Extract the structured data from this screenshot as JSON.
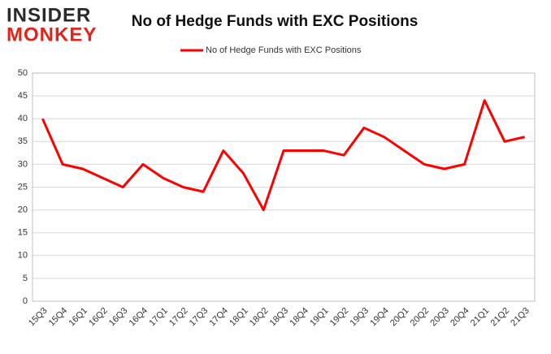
{
  "logo": {
    "line1": "INSIDER",
    "line2": "MONKEY"
  },
  "chart_data": {
    "type": "line",
    "title": "No of Hedge Funds with EXC Positions",
    "categories": [
      "15Q3",
      "15Q4",
      "16Q1",
      "16Q2",
      "16Q3",
      "16Q4",
      "17Q1",
      "17Q2",
      "17Q3",
      "17Q4",
      "18Q1",
      "18Q2",
      "18Q3",
      "18Q4",
      "19Q1",
      "19Q2",
      "19Q3",
      "19Q4",
      "20Q1",
      "20Q2",
      "20Q3",
      "20Q4",
      "21Q1",
      "21Q2",
      "21Q3"
    ],
    "series": [
      {
        "name": "No of Hedge Funds with EXC Positions",
        "color": "#ff0000",
        "values": [
          40,
          30,
          29,
          27,
          25,
          30,
          27,
          25,
          24,
          33,
          28,
          20,
          33,
          33,
          33,
          32,
          38,
          36,
          33,
          30,
          29,
          30,
          44,
          35,
          36
        ]
      }
    ],
    "ylim": [
      0,
      50
    ],
    "yticks": [
      0,
      5,
      10,
      15,
      20,
      25,
      30,
      35,
      40,
      45,
      50
    ],
    "grid": true,
    "legend": "top"
  }
}
